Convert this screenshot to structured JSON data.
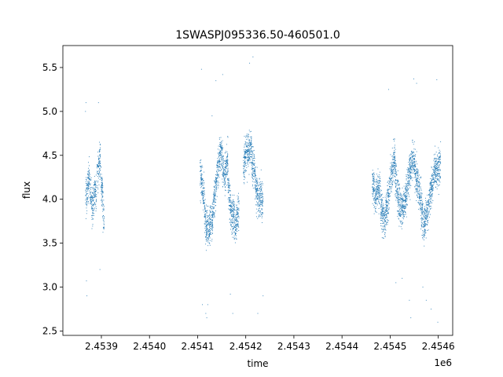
{
  "chart_data": {
    "type": "scatter",
    "title": "1SWASPJ095336.50-460501.0",
    "xlabel": "time",
    "ylabel": "flux",
    "x_offset_label": "1e6",
    "xlim": [
      2453820,
      2454630
    ],
    "ylim": [
      2.45,
      5.75
    ],
    "grid": false,
    "marker_color": "#1f77b4",
    "x_ticks": [
      {
        "value": 2453900,
        "label": "2.4539"
      },
      {
        "value": 2454000,
        "label": "2.4540"
      },
      {
        "value": 2454100,
        "label": "2.4541"
      },
      {
        "value": 2454200,
        "label": "2.4542"
      },
      {
        "value": 2454300,
        "label": "2.4543"
      },
      {
        "value": 2454400,
        "label": "2.4544"
      },
      {
        "value": 2454500,
        "label": "2.4545"
      },
      {
        "value": 2454600,
        "label": "2.4546"
      }
    ],
    "y_ticks": [
      {
        "value": 2.5,
        "label": "2.5"
      },
      {
        "value": 3.0,
        "label": "3.0"
      },
      {
        "value": 3.5,
        "label": "3.5"
      },
      {
        "value": 4.0,
        "label": "4.0"
      },
      {
        "value": 4.5,
        "label": "4.5"
      },
      {
        "value": 5.0,
        "label": "5.0"
      },
      {
        "value": 5.5,
        "label": "5.5"
      }
    ],
    "series": [
      {
        "segments": [
          {
            "x": [
              2453867,
              2453875
            ],
            "y": [
              4.0,
              4.25
            ]
          },
          {
            "x": [
              2453876,
              2453883
            ],
            "y": [
              4.1,
              3.9
            ]
          },
          {
            "x": [
              2453884,
              2453890
            ],
            "y": [
              4.05,
              4.1
            ]
          },
          {
            "x": [
              2453891,
              2453898
            ],
            "y": [
              4.3,
              4.45
            ]
          },
          {
            "x": [
              2453899,
              2453906
            ],
            "y": [
              4.3,
              3.75
            ]
          },
          {
            "x": [
              2454105,
              2454112
            ],
            "y": [
              4.3,
              4.05
            ]
          },
          {
            "x": [
              2454112,
              2454118
            ],
            "y": [
              4.15,
              3.6
            ]
          },
          {
            "x": [
              2454118,
              2454125
            ],
            "y": [
              3.7,
              3.65
            ]
          },
          {
            "x": [
              2454125,
              2454132
            ],
            "y": [
              3.7,
              3.8
            ]
          },
          {
            "x": [
              2454132,
              2454139
            ],
            "y": [
              3.9,
              4.2
            ]
          },
          {
            "x": [
              2454139,
              2454147
            ],
            "y": [
              4.2,
              4.55
            ]
          },
          {
            "x": [
              2454147,
              2454155
            ],
            "y": [
              4.6,
              4.3
            ]
          },
          {
            "x": [
              2454155,
              2454163
            ],
            "y": [
              4.25,
              4.45
            ]
          },
          {
            "x": [
              2454163,
              2454170
            ],
            "y": [
              4.2,
              3.8
            ]
          },
          {
            "x": [
              2454170,
              2454178
            ],
            "y": [
              3.85,
              3.75
            ]
          },
          {
            "x": [
              2454178,
              2454186
            ],
            "y": [
              3.7,
              3.9
            ]
          },
          {
            "x": [
              2454195,
              2454203
            ],
            "y": [
              4.35,
              4.6
            ]
          },
          {
            "x": [
              2454203,
              2454212
            ],
            "y": [
              4.5,
              4.65
            ]
          },
          {
            "x": [
              2454212,
              2454220
            ],
            "y": [
              4.45,
              4.3
            ]
          },
          {
            "x": [
              2454220,
              2454228
            ],
            "y": [
              4.15,
              3.95
            ]
          },
          {
            "x": [
              2454228,
              2454236
            ],
            "y": [
              4.05,
              3.95
            ]
          },
          {
            "x": [
              2454463,
              2454470
            ],
            "y": [
              4.2,
              4.0
            ]
          },
          {
            "x": [
              2454470,
              2454480
            ],
            "y": [
              4.05,
              4.15
            ]
          },
          {
            "x": [
              2454480,
              2454490
            ],
            "y": [
              3.9,
              3.75
            ]
          },
          {
            "x": [
              2454490,
              2454500
            ],
            "y": [
              3.8,
              4.15
            ]
          },
          {
            "x": [
              2454500,
              2454510
            ],
            "y": [
              4.2,
              4.5
            ]
          },
          {
            "x": [
              2454510,
              2454520
            ],
            "y": [
              4.3,
              3.9
            ]
          },
          {
            "x": [
              2454520,
              2454530
            ],
            "y": [
              3.9,
              3.95
            ]
          },
          {
            "x": [
              2454530,
              2454540
            ],
            "y": [
              3.95,
              4.3
            ]
          },
          {
            "x": [
              2454540,
              2454550
            ],
            "y": [
              4.3,
              4.5
            ]
          },
          {
            "x": [
              2454550,
              2454560
            ],
            "y": [
              4.4,
              4.1
            ]
          },
          {
            "x": [
              2454560,
              2454570
            ],
            "y": [
              4.1,
              3.7
            ]
          },
          {
            "x": [
              2454570,
              2454580
            ],
            "y": [
              3.7,
              3.9
            ]
          },
          {
            "x": [
              2454580,
              2454590
            ],
            "y": [
              4.0,
              4.2
            ]
          },
          {
            "x": [
              2454590,
              2454605
            ],
            "y": [
              4.3,
              4.4
            ]
          }
        ],
        "outliers": [
          {
            "x": 2453867,
            "y": 5.0
          },
          {
            "x": 2453868,
            "y": 5.1
          },
          {
            "x": 2453869,
            "y": 3.07
          },
          {
            "x": 2453870,
            "y": 2.9
          },
          {
            "x": 2453894,
            "y": 5.1
          },
          {
            "x": 2453897,
            "y": 3.2
          },
          {
            "x": 2454108,
            "y": 5.48
          },
          {
            "x": 2454110,
            "y": 2.8
          },
          {
            "x": 2454117,
            "y": 2.7
          },
          {
            "x": 2454119,
            "y": 2.65
          },
          {
            "x": 2454121,
            "y": 2.8
          },
          {
            "x": 2454130,
            "y": 4.95
          },
          {
            "x": 2454138,
            "y": 5.35
          },
          {
            "x": 2454152,
            "y": 5.42
          },
          {
            "x": 2454168,
            "y": 2.92
          },
          {
            "x": 2454173,
            "y": 2.7
          },
          {
            "x": 2454208,
            "y": 5.55
          },
          {
            "x": 2454215,
            "y": 5.62
          },
          {
            "x": 2454225,
            "y": 2.7
          },
          {
            "x": 2454236,
            "y": 2.9
          },
          {
            "x": 2454497,
            "y": 5.25
          },
          {
            "x": 2454512,
            "y": 3.05
          },
          {
            "x": 2454525,
            "y": 3.1
          },
          {
            "x": 2454540,
            "y": 2.85
          },
          {
            "x": 2454543,
            "y": 2.65
          },
          {
            "x": 2454549,
            "y": 5.37
          },
          {
            "x": 2454555,
            "y": 5.32
          },
          {
            "x": 2454568,
            "y": 3.0
          },
          {
            "x": 2454575,
            "y": 2.85
          },
          {
            "x": 2454585,
            "y": 2.75
          },
          {
            "x": 2454597,
            "y": 5.36
          },
          {
            "x": 2454599,
            "y": 2.6
          }
        ]
      }
    ]
  }
}
